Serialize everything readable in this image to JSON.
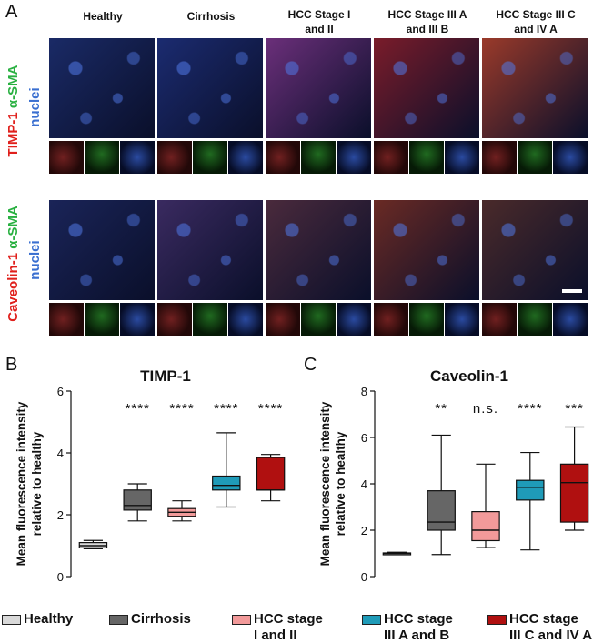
{
  "panel_labels": {
    "a": "A",
    "b": "B",
    "c": "C"
  },
  "columns": [
    {
      "line1": "Healthy",
      "line2": ""
    },
    {
      "line1": "Cirrhosis",
      "line2": ""
    },
    {
      "line1": "HCC Stage I",
      "line2": "and II"
    },
    {
      "line1": "HCC Stage III A",
      "line2": "and III B"
    },
    {
      "line1": "HCC Stage III C",
      "line2": "and IV A"
    }
  ],
  "row_labels": [
    {
      "marker": "TIMP-1",
      "costain": "α-SMA",
      "nuclei": "nuclei"
    },
    {
      "marker": "Caveolin-1",
      "costain": "α-SMA",
      "nuclei": "nuclei"
    }
  ],
  "colors": {
    "red": "#e0201c",
    "green": "#28c840",
    "blue": "#3a6fd0",
    "healthy": "#d9d9d9",
    "cirrhosis": "#666666",
    "hcc_i_ii": "#f29a9a",
    "hcc_iii_ab": "#1f9bb8",
    "hcc_iiic_iva": "#b01010"
  },
  "legend": [
    {
      "line1": "Healthy",
      "line2": "",
      "color_key": "healthy"
    },
    {
      "line1": "Cirrhosis",
      "line2": "",
      "color_key": "cirrhosis"
    },
    {
      "line1": "HCC stage",
      "line2": "I and II",
      "color_key": "hcc_i_ii"
    },
    {
      "line1": "HCC stage",
      "line2": "III A and B",
      "color_key": "hcc_iii_ab"
    },
    {
      "line1": "HCC stage",
      "line2": "III C and IV A",
      "color_key": "hcc_iiic_iva"
    }
  ],
  "chart_data": [
    {
      "type": "box",
      "title": "TIMP-1",
      "ylabel": "Mean fluorescence intensity relative to healthy",
      "ylabel_lines": [
        "Mean fluorescence intensity",
        "relative to healthy"
      ],
      "ylim": [
        0,
        6
      ],
      "yticks": [
        0,
        2,
        4,
        6
      ],
      "categories": [
        "Healthy",
        "Cirrhosis",
        "HCC stage I and II",
        "HCC stage III A and B",
        "HCC stage III C and IV A"
      ],
      "boxes": [
        {
          "min": 0.9,
          "q1": 0.93,
          "median": 1.0,
          "q3": 1.1,
          "max": 1.17
        },
        {
          "min": 1.8,
          "q1": 2.15,
          "median": 2.3,
          "q3": 2.8,
          "max": 3.0
        },
        {
          "min": 1.8,
          "q1": 1.95,
          "median": 2.08,
          "q3": 2.2,
          "max": 2.45
        },
        {
          "min": 2.25,
          "q1": 2.8,
          "median": 2.95,
          "q3": 3.25,
          "max": 4.65
        },
        {
          "min": 2.45,
          "q1": 2.8,
          "median": 2.8,
          "q3": 3.85,
          "max": 3.95
        }
      ],
      "significance": [
        "",
        "****",
        "****",
        "****",
        "****"
      ]
    },
    {
      "type": "box",
      "title": "Caveolin-1",
      "ylabel": "Mean fluorescence intensity relative to healthy",
      "ylabel_lines": [
        "Mean fluorescence intensity",
        "relative to healthy"
      ],
      "ylim": [
        0,
        8
      ],
      "yticks": [
        0,
        2,
        4,
        6,
        8
      ],
      "categories": [
        "Healthy",
        "Cirrhosis",
        "HCC stage I and II",
        "HCC stage III A and B",
        "HCC stage III C and IV A"
      ],
      "boxes": [
        {
          "min": 0.95,
          "q1": 0.97,
          "median": 1.0,
          "q3": 1.02,
          "max": 1.05
        },
        {
          "min": 0.95,
          "q1": 2.0,
          "median": 2.35,
          "q3": 3.7,
          "max": 6.1
        },
        {
          "min": 1.25,
          "q1": 1.55,
          "median": 2.0,
          "q3": 2.8,
          "max": 4.85
        },
        {
          "min": 1.15,
          "q1": 3.3,
          "median": 3.85,
          "q3": 4.15,
          "max": 5.35
        },
        {
          "min": 2.0,
          "q1": 2.35,
          "median": 4.05,
          "q3": 4.85,
          "max": 6.45
        }
      ],
      "significance": [
        "",
        "**",
        "n.s.",
        "****",
        "***"
      ]
    }
  ]
}
